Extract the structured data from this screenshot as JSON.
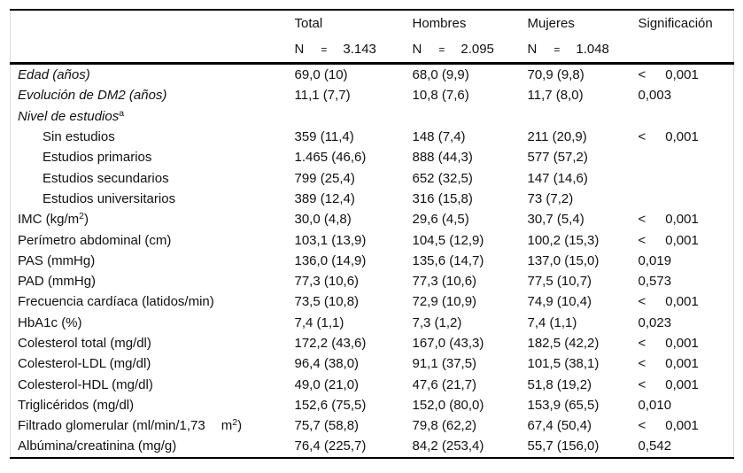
{
  "table": {
    "header": {
      "n_prefix": "N",
      "eq": "=",
      "sig_label": "Significación",
      "columns": [
        {
          "label": "Total",
          "n": "3.143"
        },
        {
          "label": "Hombres",
          "n": "2.095"
        },
        {
          "label": "Mujeres",
          "n": "1.048"
        }
      ]
    },
    "rows": [
      {
        "name": "edad",
        "italic": true,
        "indent": false,
        "label": [
          {
            "t": "Edad (años)"
          }
        ],
        "cells": [
          "69,0 (10)",
          "68,0 (9,9)",
          "70,9 (9,8)"
        ],
        "sig": {
          "op": "<",
          "value": "0,001"
        }
      },
      {
        "name": "evolucion-dm2",
        "italic": true,
        "indent": false,
        "label": [
          {
            "t": "Evolución de DM2 (años)"
          }
        ],
        "cells": [
          "11,1 (7,7)",
          "10,8 (7,6)",
          "11,7 (8,0)"
        ],
        "sig": {
          "op": "",
          "value": "0,003"
        }
      },
      {
        "name": "nivel-de-estudios",
        "italic": true,
        "indent": false,
        "label": [
          {
            "t": "Nivel de estudios"
          },
          {
            "sup": "a"
          }
        ],
        "cells": [
          "",
          "",
          ""
        ],
        "sig": {
          "op": "",
          "value": ""
        }
      },
      {
        "name": "sin-estudios",
        "italic": false,
        "indent": true,
        "label": [
          {
            "t": "Sin estudios"
          }
        ],
        "cells": [
          "359 (11,4)",
          "148 (7,4)",
          "211 (20,9)"
        ],
        "sig": {
          "op": "<",
          "value": "0,001"
        }
      },
      {
        "name": "estudios-primarios",
        "italic": false,
        "indent": true,
        "label": [
          {
            "t": "Estudios primarios"
          }
        ],
        "cells": [
          "1.465 (46,6)",
          "888 (44,3)",
          "577 (57,2)"
        ],
        "sig": {
          "op": "",
          "value": ""
        }
      },
      {
        "name": "estudios-secundarios",
        "italic": false,
        "indent": true,
        "label": [
          {
            "t": "Estudios secundarios"
          }
        ],
        "cells": [
          "799 (25,4)",
          "652 (32,5)",
          "147 (14,6)"
        ],
        "sig": {
          "op": "",
          "value": ""
        }
      },
      {
        "name": "estudios-universitarios",
        "italic": false,
        "indent": true,
        "label": [
          {
            "t": "Estudios universitarios"
          }
        ],
        "cells": [
          "389 (12,4)",
          "316 (15,8)",
          "73 (7,2)"
        ],
        "sig": {
          "op": "",
          "value": ""
        }
      },
      {
        "name": "imc",
        "italic": false,
        "indent": false,
        "label": [
          {
            "t": "IMC (kg/m"
          },
          {
            "sup": "2"
          },
          {
            "t": ")"
          }
        ],
        "cells": [
          "30,0 (4,8)",
          "29,6 (4,5)",
          "30,7 (5,4)"
        ],
        "sig": {
          "op": "<",
          "value": "0,001"
        }
      },
      {
        "name": "perimetro-abdominal",
        "italic": false,
        "indent": false,
        "label": [
          {
            "t": "Perímetro abdominal (cm)"
          }
        ],
        "cells": [
          "103,1 (13,9)",
          "104,5 (12,9)",
          "100,2 (15,3)"
        ],
        "sig": {
          "op": "<",
          "value": "0,001"
        }
      },
      {
        "name": "pas",
        "italic": false,
        "indent": false,
        "label": [
          {
            "t": "PAS (mmHg)"
          }
        ],
        "cells": [
          "136,0 (14,9)",
          "135,6 (14,7)",
          "137,0 (15,0)"
        ],
        "sig": {
          "op": "",
          "value": "0,019"
        }
      },
      {
        "name": "pad",
        "italic": false,
        "indent": false,
        "label": [
          {
            "t": "PAD (mmHg)"
          }
        ],
        "cells": [
          "77,3 (10,6)",
          "77,3 (10,6)",
          "77,5 (10,7)"
        ],
        "sig": {
          "op": "",
          "value": "0,573"
        }
      },
      {
        "name": "frecuencia-cardiaca",
        "italic": false,
        "indent": false,
        "label": [
          {
            "t": "Frecuencia cardíaca (latidos/min)"
          }
        ],
        "cells": [
          "73,5 (10,8)",
          "72,9 (10,9)",
          "74,9 (10,4)"
        ],
        "sig": {
          "op": "<",
          "value": "0,001"
        }
      },
      {
        "name": "hba1c",
        "italic": false,
        "indent": false,
        "label": [
          {
            "t": "HbA1c (%)"
          }
        ],
        "cells": [
          "7,4 (1,1)",
          "7,3 (1,2)",
          "7,4 (1,1)"
        ],
        "sig": {
          "op": "",
          "value": "0,023"
        }
      },
      {
        "name": "colesterol-total",
        "italic": false,
        "indent": false,
        "label": [
          {
            "t": "Colesterol total (mg/dl)"
          }
        ],
        "cells": [
          "172,2 (43,6)",
          "167,0 (43,3)",
          "182,5 (42,2)"
        ],
        "sig": {
          "op": "<",
          "value": "0,001"
        }
      },
      {
        "name": "colesterol-ldl",
        "italic": false,
        "indent": false,
        "label": [
          {
            "t": "Colesterol-LDL (mg/dl)"
          }
        ],
        "cells": [
          "96,4 (38,0)",
          "91,1 (37,5)",
          "101,5 (38,1)"
        ],
        "sig": {
          "op": "<",
          "value": "0,001"
        }
      },
      {
        "name": "colesterol-hdl",
        "italic": false,
        "indent": false,
        "label": [
          {
            "t": "Colesterol-HDL (mg/dl)"
          }
        ],
        "cells": [
          "49,0 (21,0)",
          "47,6 (21,7)",
          "51,8 (19,2)"
        ],
        "sig": {
          "op": "<",
          "value": "0,001"
        }
      },
      {
        "name": "trigliceridos",
        "italic": false,
        "indent": false,
        "label": [
          {
            "t": "Triglicéridos (mg/dl)"
          }
        ],
        "cells": [
          "152,6 (75,5)",
          "152,0 (80,0)",
          "153,9 (65,5)"
        ],
        "sig": {
          "op": "",
          "value": "0,010"
        }
      },
      {
        "name": "filtrado-glomerular",
        "italic": false,
        "indent": false,
        "label": [
          {
            "t": "Filtrado glomerular (ml/min/1,73"
          },
          {
            "gap": true
          },
          {
            "t": "m"
          },
          {
            "sup": "2"
          },
          {
            "t": ")"
          }
        ],
        "cells": [
          "75,7 (58,8)",
          "79,8 (62,2)",
          "67,4 (50,4)"
        ],
        "sig": {
          "op": "<",
          "value": "0,001"
        }
      },
      {
        "name": "albumina-creatinina",
        "italic": false,
        "indent": false,
        "label": [
          {
            "t": "Albúmina/creatinina (mg/g)"
          }
        ],
        "cells": [
          "76,4 (225,7)",
          "84,2 (253,4)",
          "55,7 (156,0)"
        ],
        "sig": {
          "op": "",
          "value": "0,542"
        }
      }
    ]
  }
}
